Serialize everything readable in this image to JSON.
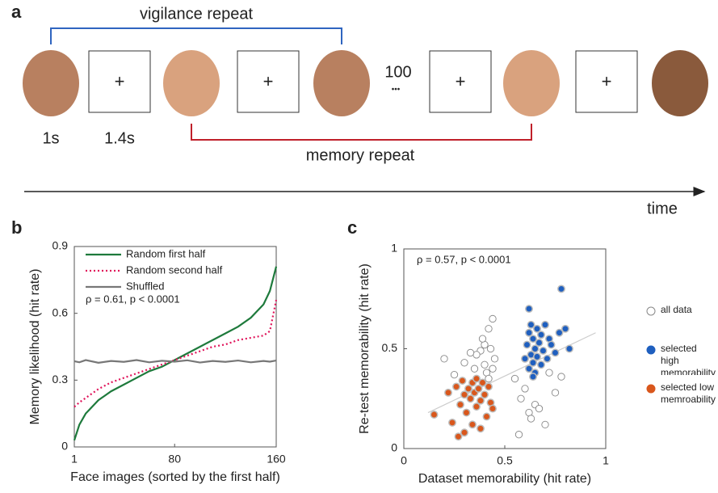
{
  "panel_a": {
    "label": "a",
    "vigilance_label": "vigilance repeat",
    "memory_label": "memory repeat",
    "durations": [
      "1s",
      "1.4s"
    ],
    "fixation": "+",
    "gap_count": "100",
    "ellipsis": "•••",
    "axis_label": "time"
  },
  "chart_data": [
    {
      "type": "line",
      "panel_label": "b",
      "xlabel": "Face images (sorted by the first half)",
      "ylabel": "Memory likelihood (hit rate)",
      "annotation": "ρ = 0.61, p < 0.0001",
      "x": [
        1,
        5,
        10,
        20,
        30,
        40,
        50,
        60,
        70,
        80,
        90,
        100,
        110,
        120,
        130,
        140,
        150,
        155,
        160
      ],
      "series": [
        {
          "name": "Random first half",
          "color": "#1e7a3c",
          "line_style": "solid",
          "values": [
            0.03,
            0.1,
            0.15,
            0.21,
            0.25,
            0.28,
            0.31,
            0.34,
            0.36,
            0.39,
            0.42,
            0.45,
            0.48,
            0.51,
            0.54,
            0.58,
            0.64,
            0.7,
            0.81
          ]
        },
        {
          "name": "Random second half",
          "color": "#e0145a",
          "line_style": "dotted",
          "values": [
            0.18,
            0.2,
            0.22,
            0.26,
            0.29,
            0.31,
            0.33,
            0.35,
            0.37,
            0.39,
            0.41,
            0.43,
            0.45,
            0.46,
            0.48,
            0.49,
            0.5,
            0.52,
            0.66
          ]
        },
        {
          "name": "Shuffled",
          "color": "#777777",
          "line_style": "solid",
          "values": [
            0.385,
            0.38,
            0.39,
            0.378,
            0.386,
            0.382,
            0.39,
            0.38,
            0.387,
            0.383,
            0.389,
            0.379,
            0.386,
            0.382,
            0.388,
            0.38,
            0.386,
            0.383,
            0.388
          ]
        }
      ],
      "xlim": [
        1,
        160
      ],
      "xticks": [
        1,
        80,
        160
      ],
      "ylim": [
        0,
        0.9
      ],
      "yticks": [
        0,
        0.3,
        0.6,
        0.9
      ],
      "legend": "upper left"
    },
    {
      "type": "scatter",
      "panel_label": "c",
      "xlabel": "Dataset memorability (hit rate)",
      "ylabel": "Re-test memorability (hit rate)",
      "annotation": "ρ = 0.57, p < 0.0001",
      "fit_line": {
        "x": [
          0.12,
          0.95
        ],
        "y": [
          0.18,
          0.58
        ],
        "color": "#cccccc"
      },
      "series": [
        {
          "name": "all data",
          "color": "#888888",
          "filled": false,
          "x": [
            0.2,
            0.25,
            0.3,
            0.35,
            0.38,
            0.4,
            0.42,
            0.44,
            0.45,
            0.4,
            0.41,
            0.43,
            0.39,
            0.36,
            0.55,
            0.57,
            0.58,
            0.6,
            0.62,
            0.63,
            0.65,
            0.67,
            0.7,
            0.72,
            0.75,
            0.78,
            0.42,
            0.44,
            0.33
          ],
          "values": [
            0.45,
            0.37,
            0.43,
            0.4,
            0.49,
            0.52,
            0.6,
            0.65,
            0.45,
            0.42,
            0.38,
            0.5,
            0.55,
            0.47,
            0.35,
            0.07,
            0.25,
            0.3,
            0.18,
            0.15,
            0.22,
            0.2,
            0.12,
            0.38,
            0.28,
            0.36,
            0.35,
            0.4,
            0.48
          ]
        },
        {
          "name": "selected high memorability",
          "color": "#1f5fbf",
          "filled": true,
          "x": [
            0.6,
            0.61,
            0.62,
            0.62,
            0.63,
            0.63,
            0.64,
            0.64,
            0.65,
            0.65,
            0.66,
            0.66,
            0.67,
            0.68,
            0.68,
            0.69,
            0.7,
            0.71,
            0.72,
            0.73,
            0.75,
            0.77,
            0.78,
            0.8,
            0.82,
            0.62,
            0.64
          ],
          "values": [
            0.45,
            0.52,
            0.4,
            0.58,
            0.47,
            0.62,
            0.43,
            0.55,
            0.5,
            0.38,
            0.6,
            0.46,
            0.53,
            0.42,
            0.57,
            0.49,
            0.62,
            0.45,
            0.55,
            0.52,
            0.48,
            0.58,
            0.8,
            0.6,
            0.5,
            0.7,
            0.36
          ]
        },
        {
          "name": "selected low memroability",
          "color": "#d9571c",
          "filled": true,
          "x": [
            0.15,
            0.22,
            0.24,
            0.26,
            0.28,
            0.29,
            0.3,
            0.31,
            0.32,
            0.33,
            0.34,
            0.34,
            0.35,
            0.36,
            0.36,
            0.37,
            0.38,
            0.39,
            0.4,
            0.41,
            0.42,
            0.43,
            0.44,
            0.3,
            0.27,
            0.38
          ],
          "values": [
            0.17,
            0.28,
            0.13,
            0.31,
            0.22,
            0.34,
            0.27,
            0.18,
            0.3,
            0.25,
            0.33,
            0.12,
            0.28,
            0.21,
            0.35,
            0.3,
            0.24,
            0.33,
            0.27,
            0.16,
            0.31,
            0.23,
            0.2,
            0.08,
            0.06,
            0.1
          ]
        }
      ],
      "xlim": [
        0,
        1
      ],
      "xticks": [
        0,
        0.5,
        1
      ],
      "ylim": [
        0,
        1
      ],
      "yticks": [
        0,
        0.5,
        1
      ],
      "legend": "right outside"
    }
  ]
}
